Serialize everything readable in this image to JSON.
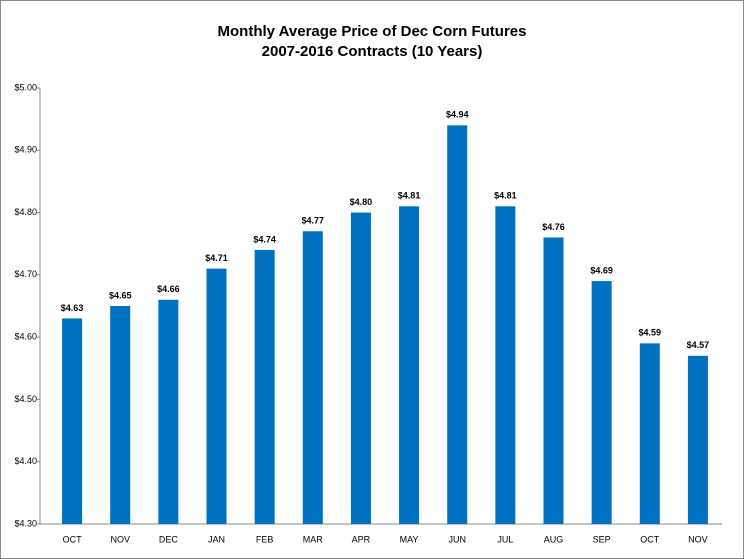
{
  "chart_data": {
    "type": "bar",
    "title": "Monthly Average Price of Dec Corn Futures",
    "subtitle": "2007-2016 Contracts (10 Years)",
    "categories": [
      "OCT",
      "NOV",
      "DEC",
      "JAN",
      "FEB",
      "MAR",
      "APR",
      "MAY",
      "JUN",
      "JUL",
      "AUG",
      "SEP",
      "OCT",
      "NOV"
    ],
    "values": [
      4.63,
      4.65,
      4.66,
      4.71,
      4.74,
      4.77,
      4.8,
      4.81,
      4.94,
      4.81,
      4.76,
      4.69,
      4.59,
      4.57
    ],
    "value_labels": [
      "$4.63",
      "$4.65",
      "$4.66",
      "$4.71",
      "$4.74",
      "$4.77",
      "$4.80",
      "$4.81",
      "$4.94",
      "$4.81",
      "$4.76",
      "$4.69",
      "$4.59",
      "$4.57"
    ],
    "color": "#0070c0",
    "ylim": [
      4.3,
      5.0
    ],
    "yticks": [
      {
        "value": 4.3,
        "label": "$4.30"
      },
      {
        "value": 4.4,
        "label": "$4.40"
      },
      {
        "value": 4.5,
        "label": "$4.50"
      },
      {
        "value": 4.6,
        "label": "$4.60"
      },
      {
        "value": 4.7,
        "label": "$4.70"
      },
      {
        "value": 4.8,
        "label": "$4.80"
      },
      {
        "value": 4.9,
        "label": "$4.90"
      },
      {
        "value": 5.0,
        "label": "$5.00"
      }
    ],
    "grid": false
  }
}
